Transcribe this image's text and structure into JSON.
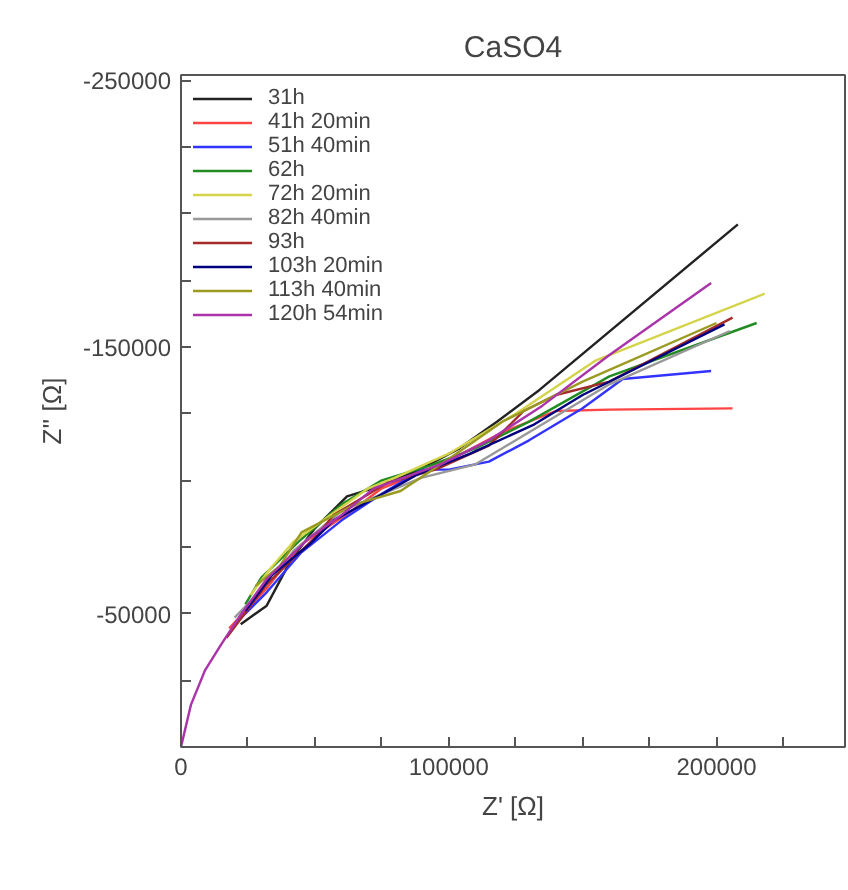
{
  "chart_data": {
    "type": "line",
    "title": "CaSO4",
    "xlabel": "Z' [Ω]",
    "ylabel": "Z'' [Ω]",
    "xlim": [
      0,
      248000
    ],
    "ylim": [
      0,
      -252000
    ],
    "xticks": [
      0,
      {
        "value": 25000,
        "label": null
      },
      {
        "value": 50000,
        "label": null
      },
      {
        "value": 75000,
        "label": null
      },
      100000,
      {
        "value": 125000,
        "label": null
      },
      {
        "value": 150000,
        "label": null
      },
      {
        "value": 175000,
        "label": null
      },
      200000,
      {
        "value": 225000,
        "label": null
      }
    ],
    "yticks": [
      {
        "value": -25000,
        "label": null
      },
      -50000,
      {
        "value": -75000,
        "label": null
      },
      {
        "value": -100000,
        "label": null
      },
      {
        "value": -125000,
        "label": null
      },
      -150000,
      {
        "value": -175000,
        "label": null
      },
      {
        "value": -200000,
        "label": null
      },
      {
        "value": -225000,
        "label": null
      },
      -250000
    ],
    "grid": false,
    "legend": "top left",
    "marker": "none",
    "line_style": "solid",
    "series": [
      {
        "name": "31h",
        "color": "#222222",
        "x": [
          22300,
          32000,
          41000,
          50000,
          62000,
          75000,
          89000,
          104000,
          118000,
          134000,
          208000
        ],
        "values": [
          -46000,
          -53000,
          -70000,
          -82000,
          -94000,
          -98000,
          -104000,
          -112000,
          -122000,
          -134000,
          -196000
        ]
      },
      {
        "name": "41h 20min",
        "color": "#ff4444",
        "x": [
          18000,
          32000,
          45000,
          63000,
          75000,
          90000,
          105000,
          120000,
          140000,
          160000,
          206000
        ],
        "values": [
          -44500,
          -59500,
          -76000,
          -88000,
          -97000,
          -103000,
          -110000,
          -118000,
          -126000,
          -126500,
          -127000
        ]
      },
      {
        "name": "51h 40min",
        "color": "#3333ff",
        "x": [
          20000,
          32000,
          45000,
          60000,
          75000,
          90000,
          100000,
          115000,
          130000,
          150000,
          165000,
          198000
        ],
        "values": [
          -46000,
          -58000,
          -73000,
          -85000,
          -95000,
          -104000,
          -104000,
          -107000,
          -115000,
          -127000,
          -138000,
          -141000
        ]
      },
      {
        "name": "62h",
        "color": "#228b22",
        "x": [
          24000,
          30000,
          45000,
          60000,
          75000,
          93000,
          110000,
          130000,
          160000,
          215000
        ],
        "values": [
          -53500,
          -63500,
          -78000,
          -91000,
          -100000,
          -105500,
          -112000,
          -122000,
          -139000,
          -159000
        ]
      },
      {
        "name": "72h 20min",
        "color": "#d4d44a",
        "x": [
          26000,
          33000,
          42000,
          60000,
          70000,
          80000,
          100000,
          125000,
          155000,
          218000
        ],
        "values": [
          -57000,
          -66500,
          -77000,
          -90000,
          -97000,
          -101000,
          -110000,
          -125000,
          -145000,
          -170000
        ]
      },
      {
        "name": "82h 40min",
        "color": "#999999",
        "x": [
          20000,
          36000,
          42000,
          60000,
          73000,
          90000,
          110000,
          130000,
          160000,
          205000
        ],
        "values": [
          -48500,
          -65000,
          -73500,
          -88500,
          -94000,
          -101000,
          -106000,
          -118000,
          -136000,
          -156000
        ]
      },
      {
        "name": "93h",
        "color": "#a52a2a",
        "x": [
          17000,
          32000,
          51000,
          57000,
          77000,
          95000,
          115000,
          128000,
          140000,
          160000,
          206000
        ],
        "values": [
          -41000,
          -61000,
          -79500,
          -87000,
          -99000,
          -104000,
          -113000,
          -126000,
          -132000,
          -137000,
          -161000
        ]
      },
      {
        "name": "103h 20min",
        "color": "#000080",
        "x": [
          24000,
          34000,
          48000,
          57000,
          80000,
          88000,
          108000,
          132000,
          150000,
          203000
        ],
        "values": [
          -51000,
          -64500,
          -76000,
          -85000,
          -97500,
          -102000,
          -110000,
          -121000,
          -132000,
          -158500
        ]
      },
      {
        "name": "113h 40min",
        "color": "#9a9a20",
        "x": [
          28000,
          37000,
          45000,
          65000,
          82000,
          100000,
          120000,
          150000,
          200000
        ],
        "values": [
          -60500,
          -68000,
          -80500,
          -91000,
          -96000,
          -108000,
          -122000,
          -137000,
          -159000
        ]
      },
      {
        "name": "120h 54min",
        "color": "#aa33aa",
        "x": [
          0,
          3700,
          8900,
          14900,
          22300,
          32000,
          48000,
          60000,
          72000,
          97000,
          115000,
          135000,
          160000,
          198000
        ],
        "values": [
          0,
          -15800,
          -28600,
          -38300,
          -49600,
          -63000,
          -78500,
          -87000,
          -97000,
          -106000,
          -115000,
          -128000,
          -147000,
          -174000
        ]
      }
    ]
  }
}
